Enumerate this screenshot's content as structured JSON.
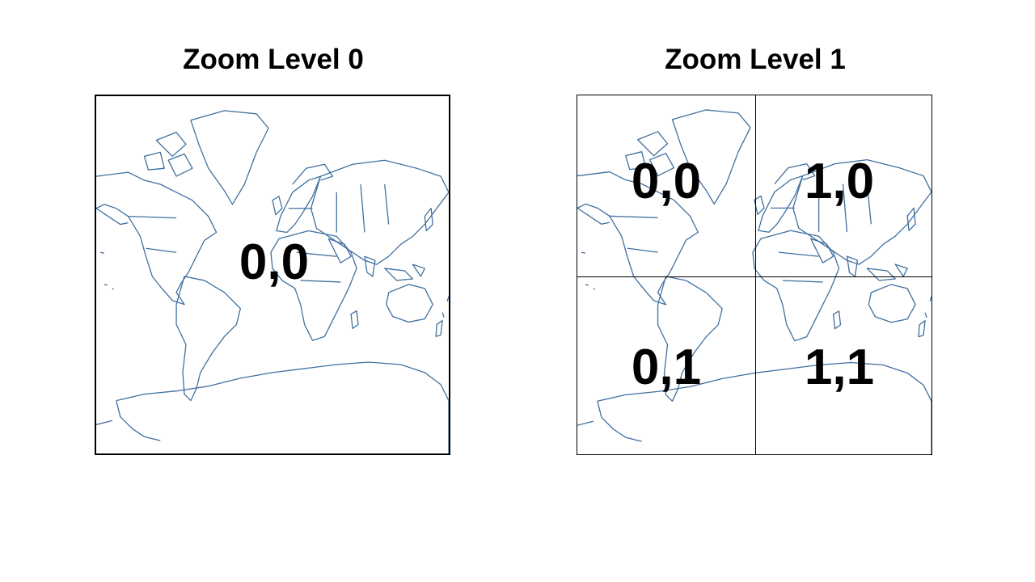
{
  "panels": [
    {
      "title": "Zoom Level 0",
      "tiles": [
        "0,0"
      ]
    },
    {
      "title": "Zoom Level 1",
      "tiles": [
        "0,0",
        "1,0",
        "0,1",
        "1,1"
      ]
    }
  ],
  "colors": {
    "coastline": "#3f6f9f",
    "grid": "#000000",
    "text": "#000000"
  },
  "icons": {
    "map": "world-map-mercator"
  }
}
